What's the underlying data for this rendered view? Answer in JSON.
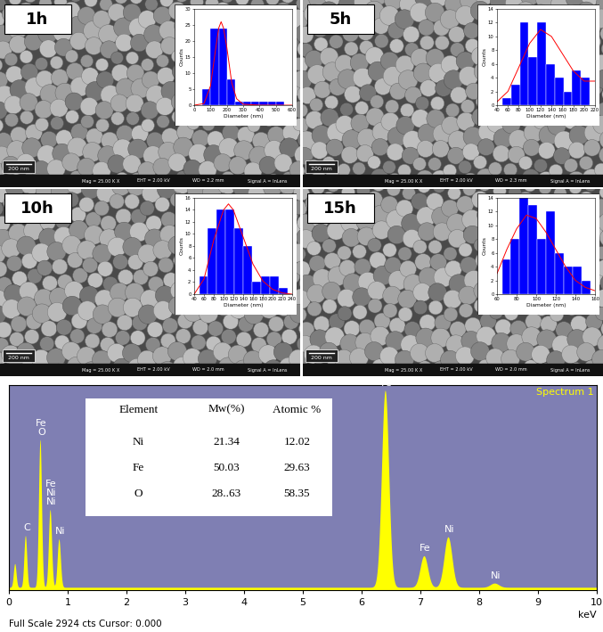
{
  "micrographs": [
    {
      "label": "1h",
      "scale_bar": "200 nm",
      "info": [
        "Mag = 25.00 K X",
        "EHT = 2.00 kV",
        "WD = 2.2 mm",
        "Signal A = InLens"
      ]
    },
    {
      "label": "5h",
      "scale_bar": "200 nm",
      "info": [
        "Mag = 25.00 K X",
        "EHT = 2.00 kV",
        "WD = 2.3 mm",
        "Signal A = InLens"
      ]
    },
    {
      "label": "10h",
      "scale_bar": "200 nm",
      "info": [
        "Mag = 25.00 K X",
        "EHT = 2.00 kV",
        "WD = 2.0 mm",
        "Signal A = InLens"
      ]
    },
    {
      "label": "15h",
      "scale_bar": "200 nm",
      "info": [
        "Mag = 25.00 K X",
        "EHT = 2.00 kV",
        "WD = 2.0 mm",
        "Signal A = InLens"
      ]
    }
  ],
  "chart_data": [
    {
      "type": "histogram",
      "x_label": "Diameter (nm)",
      "y_label": "Counts",
      "color": "#0000ff",
      "bins": [
        50,
        100,
        150,
        200,
        250,
        300,
        350,
        400,
        450,
        500,
        550
      ],
      "counts": [
        5,
        24,
        24,
        8,
        1,
        1,
        1,
        1,
        1,
        1
      ],
      "fit": {
        "color": "#ff0000",
        "x": [
          0,
          60,
          100,
          130,
          150,
          165,
          180,
          200,
          230,
          260,
          300,
          400,
          500,
          600
        ],
        "values": [
          0,
          0.5,
          6,
          17,
          24,
          26,
          24,
          18,
          7,
          2,
          0.3,
          0,
          0,
          0
        ]
      },
      "xlim": [
        0,
        600
      ],
      "xticks": [
        0,
        100,
        200,
        300,
        400,
        500,
        600
      ],
      "ylim": [
        0,
        30
      ],
      "yticks": [
        0,
        5,
        10,
        15,
        20,
        25,
        30
      ]
    },
    {
      "type": "histogram",
      "x_label": "Diameter (nm)",
      "y_label": "Counts",
      "color": "#0000ff",
      "bins": [
        50,
        66,
        82,
        98,
        114,
        130,
        146,
        162,
        178,
        194,
        210
      ],
      "counts": [
        1,
        3,
        12,
        7,
        12,
        6,
        4,
        2,
        5,
        4
      ],
      "fit": {
        "color": "#ff0000",
        "x": [
          40,
          60,
          80,
          100,
          120,
          140,
          160,
          180,
          200,
          220
        ],
        "values": [
          0.5,
          2,
          5.5,
          9,
          11,
          10,
          7.5,
          5,
          3.5,
          3.5
        ]
      },
      "xlim": [
        40,
        220
      ],
      "xticks": [
        40,
        60,
        80,
        100,
        120,
        140,
        160,
        180,
        200,
        220
      ],
      "ylim": [
        0,
        14
      ],
      "yticks": [
        0,
        2,
        4,
        6,
        8,
        10,
        12,
        14
      ]
    },
    {
      "type": "histogram",
      "x_label": "Diameter (nm)",
      "y_label": "Counts",
      "color": "#0000ff",
      "bins": [
        50,
        68,
        86,
        104,
        122,
        140,
        158,
        176,
        194,
        212,
        230
      ],
      "counts": [
        3,
        11,
        14,
        14,
        11,
        8,
        2,
        3,
        3,
        1
      ],
      "fit": {
        "color": "#ff0000",
        "x": [
          40,
          60,
          80,
          100,
          110,
          120,
          140,
          160,
          180,
          200,
          220,
          240
        ],
        "values": [
          0,
          2.5,
          9,
          14,
          15,
          14,
          9.5,
          5,
          2.2,
          0.8,
          0.2,
          0
        ]
      },
      "xlim": [
        40,
        240
      ],
      "xticks": [
        40,
        60,
        80,
        100,
        120,
        140,
        160,
        180,
        200,
        220,
        240
      ],
      "ylim": [
        0,
        16
      ],
      "yticks": [
        0,
        2,
        4,
        6,
        8,
        10,
        12,
        14,
        16
      ]
    },
    {
      "type": "histogram",
      "x_label": "Diameter (nm)",
      "y_label": "Counts",
      "color": "#0000ff",
      "bins": [
        65,
        74,
        83,
        92,
        101,
        110,
        119,
        128,
        137,
        146,
        155
      ],
      "counts": [
        5,
        8,
        14,
        13,
        8,
        12,
        6,
        4,
        4,
        2
      ],
      "fit": {
        "color": "#ff0000",
        "x": [
          60,
          70,
          80,
          90,
          100,
          110,
          120,
          130,
          140,
          150,
          160
        ],
        "values": [
          3,
          6.5,
          9.5,
          11.5,
          11,
          9,
          6.5,
          4,
          2,
          1,
          0.5
        ]
      },
      "xlim": [
        60,
        160
      ],
      "xticks": [
        60,
        80,
        100,
        120,
        140,
        160
      ],
      "ylim": [
        0,
        14
      ],
      "yticks": [
        0,
        2,
        4,
        6,
        8,
        10,
        12,
        14
      ]
    },
    {
      "type": "area",
      "title": "Spectrum 1",
      "x_label": "keV",
      "color": "#ffff00",
      "footer": "Full Scale 2924 cts Cursor: 0.000",
      "background": 40,
      "peaks": {
        "x": [
          0.1,
          0.28,
          0.53,
          0.7,
          0.85,
          6.4,
          7.06,
          7.47,
          8.26
        ],
        "values": [
          380,
          780,
          2150,
          1150,
          730,
          2850,
          490,
          760,
          100
        ],
        "labels": [
          [],
          [
            "C"
          ],
          [
            "Fe",
            "O"
          ],
          [
            "Fe",
            "Ni",
            "Ni"
          ],
          [
            "Ni"
          ],
          [
            "Fe"
          ],
          [
            "Fe"
          ],
          [
            "Ni"
          ],
          [
            "Ni"
          ]
        ]
      },
      "table": {
        "columns": [
          "Element",
          "Mw(%)",
          "Atomic %"
        ],
        "rows": [
          [
            "Ni",
            "21.34",
            "12.02"
          ],
          [
            "Fe",
            "50.03",
            "29.63"
          ],
          [
            "O",
            "28..63",
            "58.35"
          ]
        ]
      },
      "xlim": [
        0,
        10
      ],
      "xticks": [
        0,
        1,
        2,
        3,
        4,
        5,
        6,
        7,
        8,
        9,
        10
      ],
      "ylim": [
        0,
        2924
      ],
      "tick_labels": "x"
    }
  ]
}
